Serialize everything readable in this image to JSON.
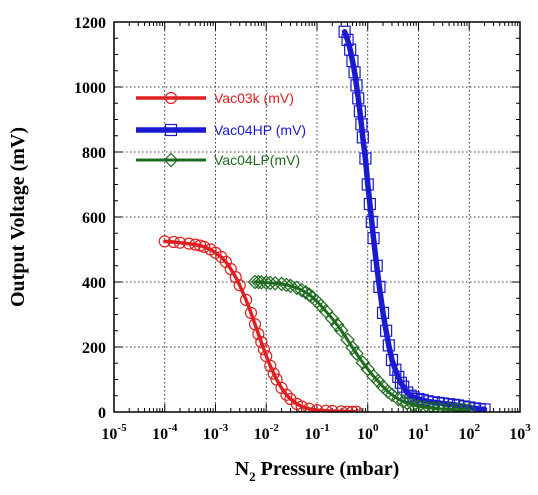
{
  "chart_data": {
    "type": "scatter",
    "x_scale": "log",
    "xlim": [
      1e-05,
      1000
    ],
    "ylim": [
      0,
      1200
    ],
    "grid": true,
    "legend_position": "top-left",
    "xlabel": {
      "main": "N",
      "sub": "2",
      "rest": " Pressure (mbar)"
    },
    "ylabel": "Output Voltage (mV)",
    "x_ticks": [
      {
        "base": "10",
        "exp": "-5",
        "value": 1e-05
      },
      {
        "base": "10",
        "exp": "-4",
        "value": 0.0001
      },
      {
        "base": "10",
        "exp": "-3",
        "value": 0.001
      },
      {
        "base": "10",
        "exp": "-2",
        "value": 0.01
      },
      {
        "base": "10",
        "exp": "-1",
        "value": 0.1
      },
      {
        "base": "10",
        "exp": "0",
        "value": 1
      },
      {
        "base": "10",
        "exp": "1",
        "value": 10
      },
      {
        "base": "10",
        "exp": "2",
        "value": 100
      },
      {
        "base": "10",
        "exp": "3",
        "value": 1000
      }
    ],
    "y_ticks": [
      {
        "label": "0",
        "value": 0
      },
      {
        "label": "200",
        "value": 200
      },
      {
        "label": "400",
        "value": 400
      },
      {
        "label": "600",
        "value": 600
      },
      {
        "label": "800",
        "value": 800
      },
      {
        "label": "1000",
        "value": 1000
      },
      {
        "label": "1200",
        "value": 1200
      }
    ],
    "series": [
      {
        "name": "Vac03k (mV)",
        "color": "#e02020",
        "marker": "circle",
        "x": [
          0.0001,
          0.00015,
          0.0002,
          0.0003,
          0.0004,
          0.0005,
          0.0006,
          0.0008,
          0.001,
          0.0013,
          0.0016,
          0.002,
          0.0025,
          0.003,
          0.004,
          0.005,
          0.006,
          0.007,
          0.008,
          0.009,
          0.01,
          0.012,
          0.014,
          0.016,
          0.02,
          0.025,
          0.03,
          0.04,
          0.05,
          0.07,
          0.1,
          0.15,
          0.2,
          0.3,
          0.4,
          0.5,
          0.6
        ],
        "y": [
          525,
          523,
          521,
          518,
          515,
          512,
          508,
          500,
          490,
          477,
          462,
          440,
          415,
          390,
          345,
          305,
          270,
          240,
          215,
          193,
          172,
          142,
          118,
          100,
          74,
          53,
          40,
          25,
          17,
          10,
          6,
          4,
          3,
          2,
          1,
          1,
          1
        ]
      },
      {
        "name": "Vac04HP (mV)",
        "color": "#1a1ad0",
        "marker": "square",
        "x": [
          0.35,
          0.4,
          0.45,
          0.5,
          0.55,
          0.6,
          0.65,
          0.7,
          0.75,
          0.8,
          0.9,
          1.0,
          1.1,
          1.2,
          1.3,
          1.5,
          1.7,
          2.0,
          2.3,
          2.6,
          3.0,
          3.5,
          4.0,
          4.5,
          5.0,
          6.0,
          7.0,
          8.0,
          10,
          12,
          15,
          20,
          25,
          30,
          40,
          50,
          60,
          80,
          100,
          130,
          160,
          200
        ],
        "y": [
          1170,
          1145,
          1115,
          1080,
          1045,
          1005,
          965,
          925,
          885,
          845,
          780,
          700,
          640,
          585,
          535,
          450,
          385,
          305,
          250,
          205,
          160,
          130,
          108,
          90,
          78,
          60,
          50,
          45,
          40,
          37,
          33,
          30,
          28,
          26,
          24,
          22,
          20,
          17,
          14,
          11,
          9,
          8
        ]
      },
      {
        "name": "Vac04LP(mV)",
        "color": "#1d6b1d",
        "marker": "diamond",
        "x": [
          0.006,
          0.007,
          0.008,
          0.01,
          0.012,
          0.015,
          0.02,
          0.025,
          0.03,
          0.04,
          0.05,
          0.06,
          0.07,
          0.08,
          0.1,
          0.12,
          0.15,
          0.2,
          0.25,
          0.3,
          0.4,
          0.5,
          0.6,
          0.8,
          1,
          1.3,
          1.6,
          2,
          2.5,
          3,
          4,
          5,
          6,
          8,
          10,
          13,
          16,
          20,
          25,
          30,
          40,
          50,
          60,
          80,
          100
        ],
        "y": [
          400,
          400,
          399,
          398,
          397,
          396,
          394,
          391,
          388,
          382,
          375,
          368,
          361,
          354,
          340,
          327,
          310,
          287,
          268,
          251,
          222,
          198,
          180,
          152,
          132,
          110,
          95,
          78,
          63,
          53,
          40,
          32,
          27,
          21,
          18,
          15,
          13,
          11,
          10,
          9,
          8,
          7,
          7,
          6,
          6
        ]
      }
    ]
  }
}
